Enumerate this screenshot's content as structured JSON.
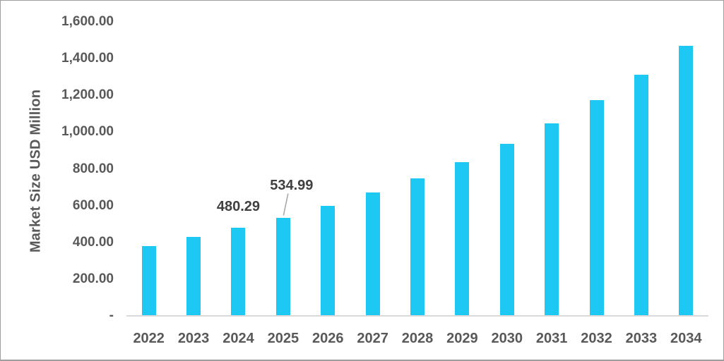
{
  "chart_data": {
    "type": "bar",
    "title": "",
    "xlabel": "",
    "ylabel": "Market Size USD Million",
    "categories": [
      "2022",
      "2023",
      "2024",
      "2025",
      "2026",
      "2027",
      "2028",
      "2029",
      "2030",
      "2031",
      "2032",
      "2033",
      "2034"
    ],
    "values": [
      380,
      429,
      480.29,
      534.99,
      598.5,
      669.6,
      749.1,
      838.0,
      937.4,
      1048.7,
      1173.2,
      1312.5,
      1468.2
    ],
    "ylim": [
      0,
      1600
    ],
    "yticks": [
      {
        "value": 1600,
        "label": "1,600.00"
      },
      {
        "value": 1400,
        "label": "1,400.00"
      },
      {
        "value": 1200,
        "label": "1,200.00"
      },
      {
        "value": 1000,
        "label": "1,000.00"
      },
      {
        "value": 800,
        "label": "800.00"
      },
      {
        "value": 600,
        "label": "600.00"
      },
      {
        "value": 400,
        "label": "400.00"
      },
      {
        "value": 200,
        "label": "200.00"
      },
      {
        "value": 0,
        "label": "-"
      }
    ],
    "data_labels": [
      {
        "category": "2024",
        "text": "480.29",
        "leader_line": false
      },
      {
        "category": "2025",
        "text": "534.99",
        "leader_line": true
      }
    ],
    "grid": false,
    "legend": false,
    "colors": {
      "bar": "#1dc8f3",
      "axis_line": "#d9d9d9",
      "tick_label": "#595959",
      "data_label": "#404040",
      "leader_line": "#a6a6a6"
    }
  }
}
